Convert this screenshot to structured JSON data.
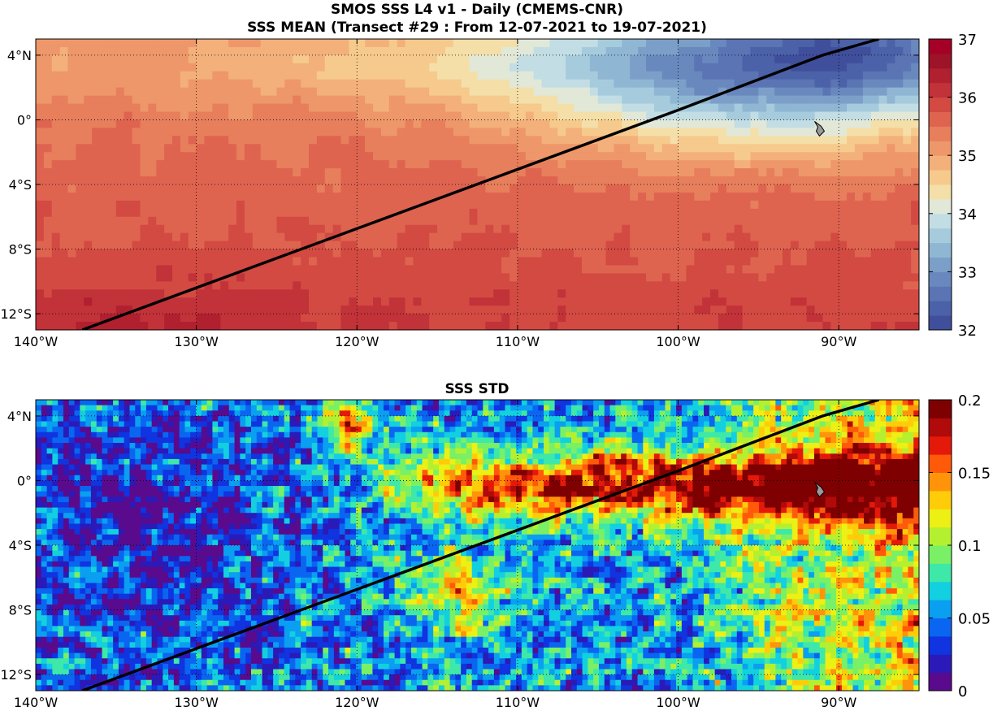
{
  "chart_data": [
    {
      "type": "heatmap",
      "title_line1": "SMOS SSS L4 v1 - Daily (CMEMS-CNR)",
      "title_line2": "SSS MEAN (Transect #29 : From 12-07-2021 to 19-07-2021)",
      "xlim": [
        -140,
        -85
      ],
      "ylim": [
        -13,
        5
      ],
      "xticks": [
        -140,
        -130,
        -120,
        -110,
        -100,
        -90
      ],
      "xtick_labels": [
        "140°W",
        "130°W",
        "120°W",
        "110°W",
        "100°W",
        "90°W"
      ],
      "yticks": [
        4,
        0,
        -4,
        -8,
        -12
      ],
      "ytick_labels": [
        "4°N",
        "0°",
        "4°S",
        "8°S",
        "12°S"
      ],
      "grid": true,
      "colorbar": {
        "range": [
          32,
          37
        ],
        "ticks": [
          32,
          33,
          34,
          35,
          36,
          37
        ],
        "tick_labels": [
          "32",
          "33",
          "34",
          "35",
          "36",
          "37"
        ],
        "colors": [
          "#3f4f9c",
          "#4b61a8",
          "#5a74b4",
          "#6989be",
          "#7b9fc8",
          "#8fb6d3",
          "#a6cbdd",
          "#c2dde4",
          "#e1e8d8",
          "#f4dfa8",
          "#f6ca8c",
          "#f3b07b",
          "#ee976a",
          "#e77e5c",
          "#de6450",
          "#d24a42",
          "#c23239",
          "#b1202f",
          "#9d1328",
          "#a50026"
        ]
      },
      "transect": [
        [
          -137.1,
          -13
        ],
        [
          -100,
          0.6
        ],
        [
          -91,
          4
        ],
        [
          -87.5,
          5
        ]
      ],
      "field_description": "Sea surface salinity mean: fresher (33-34) in north-east near 4°N 95°W, ~35 along equator, saltier (35.5-36) toward south-west"
    },
    {
      "type": "heatmap",
      "title": "SSS STD",
      "xlim": [
        -140,
        -85
      ],
      "ylim": [
        -13,
        5
      ],
      "xticks": [
        -140,
        -130,
        -120,
        -110,
        -100,
        -90
      ],
      "xtick_labels": [
        "140°W",
        "130°W",
        "120°W",
        "110°W",
        "100°W",
        "90°W"
      ],
      "yticks": [
        4,
        0,
        -4,
        -8,
        -12
      ],
      "ytick_labels": [
        "4°N",
        "0°",
        "4°S",
        "8°S",
        "12°S"
      ],
      "grid": true,
      "colorbar": {
        "range": [
          0,
          0.2
        ],
        "ticks": [
          0,
          0.05,
          0.1,
          0.15,
          0.2
        ],
        "tick_labels": [
          "0",
          "0.05",
          "0.1",
          "0.15",
          "0.2"
        ],
        "colors": [
          "#5a0a8c",
          "#2b1ab8",
          "#1034e0",
          "#0a66f0",
          "#0a9ff0",
          "#13d0e0",
          "#3ee8a8",
          "#79f066",
          "#b4f030",
          "#ecf014",
          "#ffcc0a",
          "#ff940a",
          "#ff5a0a",
          "#e4190a",
          "#b00a0a",
          "#7e0000"
        ]
      },
      "transect": [
        [
          -137.1,
          -13
        ],
        [
          -100,
          0.6
        ],
        [
          -91,
          4
        ],
        [
          -87.5,
          5
        ]
      ],
      "field_description": "Standard deviation: high (0.15-0.2) along the equator 115°W-85°W, low (0-0.05) in western and southern areas"
    }
  ]
}
